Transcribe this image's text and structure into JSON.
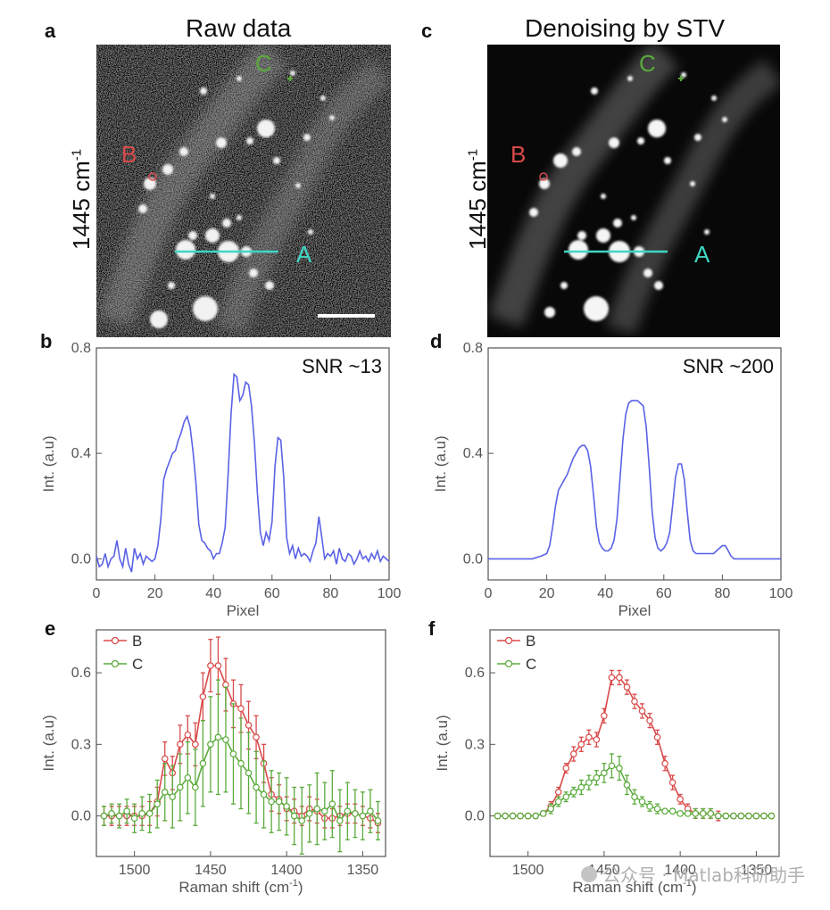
{
  "panels": {
    "a": {
      "letter": "a",
      "title": "Raw data",
      "side_label": "1445 cm",
      "side_sup": "-1",
      "points": {
        "A": "A",
        "B": "B",
        "C": "C"
      }
    },
    "c": {
      "letter": "c",
      "title": "Denoising by STV",
      "side_label": "1445 cm",
      "side_sup": "-1",
      "points": {
        "A": "A",
        "B": "B",
        "C": "C"
      }
    },
    "b": {
      "letter": "b"
    },
    "d": {
      "letter": "d"
    },
    "e": {
      "letter": "e"
    },
    "f": {
      "letter": "f"
    }
  },
  "colors": {
    "blue": "#5a62e6",
    "red": "#d94a4a",
    "green": "#5aab3c",
    "cyan": "#3fd6c4",
    "axis": "#555555"
  },
  "watermark": {
    "text": "公众号 · Matlab科研助手"
  },
  "chart_data": [
    {
      "id": "b",
      "type": "line",
      "title": "",
      "annotation": "SNR ~13",
      "xlabel": "Pixel",
      "ylabel": "Int. (a.u)",
      "xlim": [
        0,
        100
      ],
      "ylim": [
        -0.08,
        0.8
      ],
      "xticks": [
        0,
        20,
        40,
        60,
        80,
        100
      ],
      "yticks": [
        0.0,
        0.4,
        0.8
      ],
      "ytick_labels": [
        "0.0",
        "0.4",
        "0.8"
      ],
      "series": [
        {
          "name": "line A",
          "color": "#5a62e6",
          "x": [
            0,
            1,
            2,
            3,
            4,
            5,
            6,
            7,
            8,
            9,
            10,
            11,
            12,
            13,
            14,
            15,
            16,
            17,
            18,
            19,
            20,
            21,
            22,
            23,
            24,
            25,
            26,
            27,
            28,
            29,
            30,
            31,
            32,
            33,
            34,
            35,
            36,
            37,
            38,
            39,
            40,
            41,
            42,
            43,
            44,
            45,
            46,
            47,
            48,
            49,
            50,
            51,
            52,
            53,
            54,
            55,
            56,
            57,
            58,
            59,
            60,
            61,
            62,
            63,
            64,
            65,
            66,
            67,
            68,
            69,
            70,
            71,
            72,
            73,
            74,
            75,
            76,
            77,
            78,
            79,
            80,
            81,
            82,
            83,
            84,
            85,
            86,
            87,
            88,
            89,
            90,
            91,
            92,
            93,
            94,
            95,
            96,
            97,
            98,
            99,
            100
          ],
          "y": [
            0.01,
            -0.03,
            -0.02,
            0.02,
            -0.03,
            0.0,
            0.01,
            0.07,
            0.0,
            -0.03,
            0.04,
            -0.02,
            -0.05,
            0.04,
            0.0,
            0.02,
            -0.02,
            0.01,
            0.0,
            -0.01,
            0.0,
            0.05,
            0.15,
            0.3,
            0.34,
            0.37,
            0.4,
            0.41,
            0.45,
            0.48,
            0.52,
            0.54,
            0.5,
            0.41,
            0.29,
            0.13,
            0.07,
            0.06,
            0.04,
            0.03,
            0.0,
            0.02,
            0.02,
            0.06,
            0.12,
            0.32,
            0.55,
            0.7,
            0.69,
            0.6,
            0.62,
            0.67,
            0.66,
            0.58,
            0.44,
            0.25,
            0.1,
            0.05,
            0.1,
            0.07,
            0.14,
            0.35,
            0.46,
            0.45,
            0.31,
            0.08,
            0.02,
            0.05,
            0.0,
            0.04,
            0.01,
            0.02,
            0.01,
            -0.01,
            0.03,
            0.06,
            0.16,
            0.08,
            0.0,
            0.02,
            0.01,
            0.03,
            -0.02,
            0.04,
            0.0,
            -0.01,
            0.02,
            0.01,
            -0.02,
            0.0,
            0.03,
            0.0,
            0.01,
            -0.01,
            0.02,
            0.0,
            0.03,
            -0.01,
            0.01,
            0.0,
            -0.01
          ]
        }
      ]
    },
    {
      "id": "d",
      "type": "line",
      "title": "",
      "annotation": "SNR ~200",
      "xlabel": "Pixel",
      "ylabel": "Int. (a.u)",
      "xlim": [
        0,
        100
      ],
      "ylim": [
        -0.08,
        0.8
      ],
      "xticks": [
        0,
        20,
        40,
        60,
        80,
        100
      ],
      "yticks": [
        0.0,
        0.4,
        0.8
      ],
      "ytick_labels": [
        "0.0",
        "0.4",
        "0.8"
      ],
      "series": [
        {
          "name": "line A",
          "color": "#5a62e6",
          "x": [
            0,
            5,
            10,
            15,
            18,
            20,
            21,
            22,
            23,
            24,
            25,
            26,
            27,
            28,
            29,
            30,
            31,
            32,
            33,
            34,
            35,
            36,
            37,
            38,
            39,
            40,
            41,
            42,
            43,
            44,
            45,
            46,
            47,
            48,
            49,
            50,
            51,
            52,
            53,
            54,
            55,
            56,
            57,
            58,
            59,
            60,
            61,
            62,
            63,
            64,
            65,
            66,
            67,
            68,
            69,
            70,
            71,
            72,
            73,
            74,
            75,
            76,
            77,
            78,
            79,
            80,
            81,
            82,
            83,
            84,
            85,
            90,
            95,
            100
          ],
          "y": [
            0.0,
            0.0,
            0.0,
            0.0,
            0.01,
            0.02,
            0.05,
            0.12,
            0.2,
            0.26,
            0.28,
            0.3,
            0.32,
            0.35,
            0.38,
            0.4,
            0.42,
            0.43,
            0.43,
            0.41,
            0.35,
            0.24,
            0.12,
            0.06,
            0.04,
            0.03,
            0.03,
            0.04,
            0.07,
            0.15,
            0.3,
            0.45,
            0.55,
            0.59,
            0.6,
            0.6,
            0.6,
            0.59,
            0.58,
            0.5,
            0.35,
            0.18,
            0.08,
            0.04,
            0.03,
            0.04,
            0.06,
            0.1,
            0.2,
            0.31,
            0.36,
            0.36,
            0.3,
            0.18,
            0.07,
            0.03,
            0.02,
            0.02,
            0.02,
            0.02,
            0.02,
            0.02,
            0.02,
            0.03,
            0.04,
            0.05,
            0.05,
            0.03,
            0.01,
            0.0,
            0.0,
            0.0,
            0.0,
            0.0
          ]
        }
      ]
    },
    {
      "id": "e",
      "type": "line",
      "title": "",
      "xlabel": "Raman shift (cm",
      "xlabel_sup": "-1",
      "xlabel_tail": ")",
      "ylabel": "Int. (a.u)",
      "xlim": [
        1525,
        1335
      ],
      "ylim": [
        -0.17,
        0.78
      ],
      "xticks": [
        1500,
        1450,
        1400,
        1350
      ],
      "yticks": [
        0.0,
        0.3,
        0.6
      ],
      "ytick_labels": [
        "0.0",
        "0.3",
        "0.6"
      ],
      "legend": [
        "B",
        "C"
      ],
      "series": [
        {
          "name": "B",
          "color": "#d94a4a",
          "x": [
            1520,
            1515,
            1510,
            1505,
            1500,
            1495,
            1490,
            1485,
            1480,
            1475,
            1470,
            1465,
            1460,
            1455,
            1450,
            1445,
            1440,
            1435,
            1430,
            1425,
            1420,
            1415,
            1410,
            1405,
            1400,
            1395,
            1390,
            1385,
            1380,
            1375,
            1370,
            1365,
            1360,
            1355,
            1350,
            1345,
            1340
          ],
          "y": [
            0.0,
            0.0,
            0.0,
            0.0,
            0.0,
            0.0,
            0.01,
            0.06,
            0.24,
            0.18,
            0.3,
            0.34,
            0.3,
            0.5,
            0.63,
            0.63,
            0.55,
            0.47,
            0.45,
            0.38,
            0.33,
            0.22,
            0.09,
            0.07,
            0.03,
            0.02,
            0.0,
            0.03,
            0.02,
            -0.01,
            -0.01,
            0.0,
            0.01,
            0.01,
            0.0,
            -0.01,
            -0.03
          ],
          "err": [
            0.04,
            0.04,
            0.04,
            0.04,
            0.04,
            0.04,
            0.05,
            0.06,
            0.07,
            0.07,
            0.08,
            0.08,
            0.09,
            0.1,
            0.11,
            0.12,
            0.11,
            0.1,
            0.1,
            0.1,
            0.09,
            0.08,
            0.07,
            0.06,
            0.05,
            0.05,
            0.04,
            0.05,
            0.05,
            0.04,
            0.04,
            0.04,
            0.04,
            0.04,
            0.04,
            0.04,
            0.04
          ]
        },
        {
          "name": "C",
          "color": "#5aab3c",
          "x": [
            1520,
            1515,
            1510,
            1505,
            1500,
            1495,
            1490,
            1485,
            1480,
            1475,
            1470,
            1465,
            1460,
            1455,
            1450,
            1445,
            1440,
            1435,
            1430,
            1425,
            1420,
            1415,
            1410,
            1405,
            1400,
            1395,
            1390,
            1385,
            1380,
            1375,
            1370,
            1365,
            1360,
            1355,
            1350,
            1345,
            1340
          ],
          "y": [
            0.0,
            0.01,
            0.0,
            0.02,
            -0.01,
            0.01,
            0.01,
            0.05,
            0.1,
            0.08,
            0.12,
            0.16,
            0.12,
            0.22,
            0.3,
            0.33,
            0.32,
            0.26,
            0.22,
            0.18,
            0.12,
            0.09,
            0.06,
            0.06,
            0.04,
            0.0,
            -0.02,
            0.01,
            0.03,
            0.02,
            0.05,
            -0.02,
            0.02,
            0.01,
            0.0,
            0.02,
            -0.02
          ],
          "err": [
            0.04,
            0.04,
            0.05,
            0.05,
            0.06,
            0.07,
            0.08,
            0.1,
            0.12,
            0.13,
            0.14,
            0.15,
            0.16,
            0.18,
            0.2,
            0.24,
            0.22,
            0.21,
            0.19,
            0.17,
            0.15,
            0.14,
            0.13,
            0.12,
            0.12,
            0.12,
            0.14,
            0.12,
            0.15,
            0.12,
            0.14,
            0.13,
            0.12,
            0.1,
            0.1,
            0.09,
            0.08
          ]
        }
      ]
    },
    {
      "id": "f",
      "type": "line",
      "title": "",
      "xlabel": "Raman shift (cm",
      "xlabel_sup": "-1",
      "xlabel_tail": ")",
      "ylabel": "Int. (a.u)",
      "xlim": [
        1525,
        1335
      ],
      "ylim": [
        -0.17,
        0.78
      ],
      "xticks": [
        1500,
        1450,
        1400,
        1350
      ],
      "yticks": [
        0.0,
        0.3,
        0.6
      ],
      "ytick_labels": [
        "0.0",
        "0.3",
        "0.6"
      ],
      "legend": [
        "B",
        "C"
      ],
      "series": [
        {
          "name": "B",
          "color": "#d94a4a",
          "x": [
            1520,
            1515,
            1510,
            1505,
            1500,
            1495,
            1490,
            1485,
            1480,
            1475,
            1470,
            1465,
            1460,
            1455,
            1450,
            1445,
            1440,
            1435,
            1430,
            1425,
            1420,
            1415,
            1410,
            1405,
            1400,
            1395,
            1390,
            1385,
            1380,
            1375,
            1370,
            1365,
            1360,
            1355,
            1350,
            1345,
            1340
          ],
          "y": [
            0.0,
            0.0,
            0.0,
            0.0,
            0.0,
            0.0,
            0.01,
            0.04,
            0.1,
            0.2,
            0.26,
            0.3,
            0.33,
            0.32,
            0.42,
            0.58,
            0.58,
            0.54,
            0.48,
            0.44,
            0.4,
            0.33,
            0.22,
            0.14,
            0.07,
            0.03,
            0.01,
            0.01,
            0.01,
            0.0,
            0.0,
            0.0,
            0.0,
            0.0,
            0.0,
            0.0,
            0.0
          ],
          "err": [
            0.01,
            0.01,
            0.01,
            0.01,
            0.01,
            0.01,
            0.01,
            0.02,
            0.02,
            0.02,
            0.03,
            0.03,
            0.03,
            0.03,
            0.03,
            0.03,
            0.03,
            0.03,
            0.03,
            0.03,
            0.03,
            0.03,
            0.03,
            0.03,
            0.02,
            0.02,
            0.02,
            0.02,
            0.02,
            0.02,
            0.01,
            0.01,
            0.01,
            0.01,
            0.01,
            0.01,
            0.01
          ]
        },
        {
          "name": "C",
          "color": "#5aab3c",
          "x": [
            1520,
            1515,
            1510,
            1505,
            1500,
            1495,
            1490,
            1485,
            1480,
            1475,
            1470,
            1465,
            1460,
            1455,
            1450,
            1445,
            1440,
            1435,
            1430,
            1425,
            1420,
            1415,
            1410,
            1405,
            1400,
            1395,
            1390,
            1385,
            1380,
            1375,
            1370,
            1365,
            1360,
            1355,
            1350,
            1345,
            1340
          ],
          "y": [
            0.0,
            0.0,
            0.0,
            0.0,
            0.0,
            0.0,
            0.01,
            0.03,
            0.06,
            0.08,
            0.1,
            0.12,
            0.14,
            0.16,
            0.18,
            0.21,
            0.2,
            0.13,
            0.08,
            0.06,
            0.04,
            0.03,
            0.02,
            0.02,
            0.01,
            0.01,
            0.01,
            0.01,
            0.01,
            0.0,
            0.0,
            0.0,
            0.0,
            0.0,
            0.0,
            0.0,
            0.0
          ],
          "err": [
            0.01,
            0.01,
            0.01,
            0.01,
            0.01,
            0.01,
            0.01,
            0.02,
            0.02,
            0.02,
            0.02,
            0.03,
            0.03,
            0.03,
            0.04,
            0.05,
            0.05,
            0.04,
            0.03,
            0.02,
            0.02,
            0.02,
            0.01,
            0.01,
            0.01,
            0.01,
            0.02,
            0.02,
            0.02,
            0.01,
            0.01,
            0.01,
            0.01,
            0.01,
            0.01,
            0.01,
            0.01
          ]
        }
      ]
    }
  ]
}
